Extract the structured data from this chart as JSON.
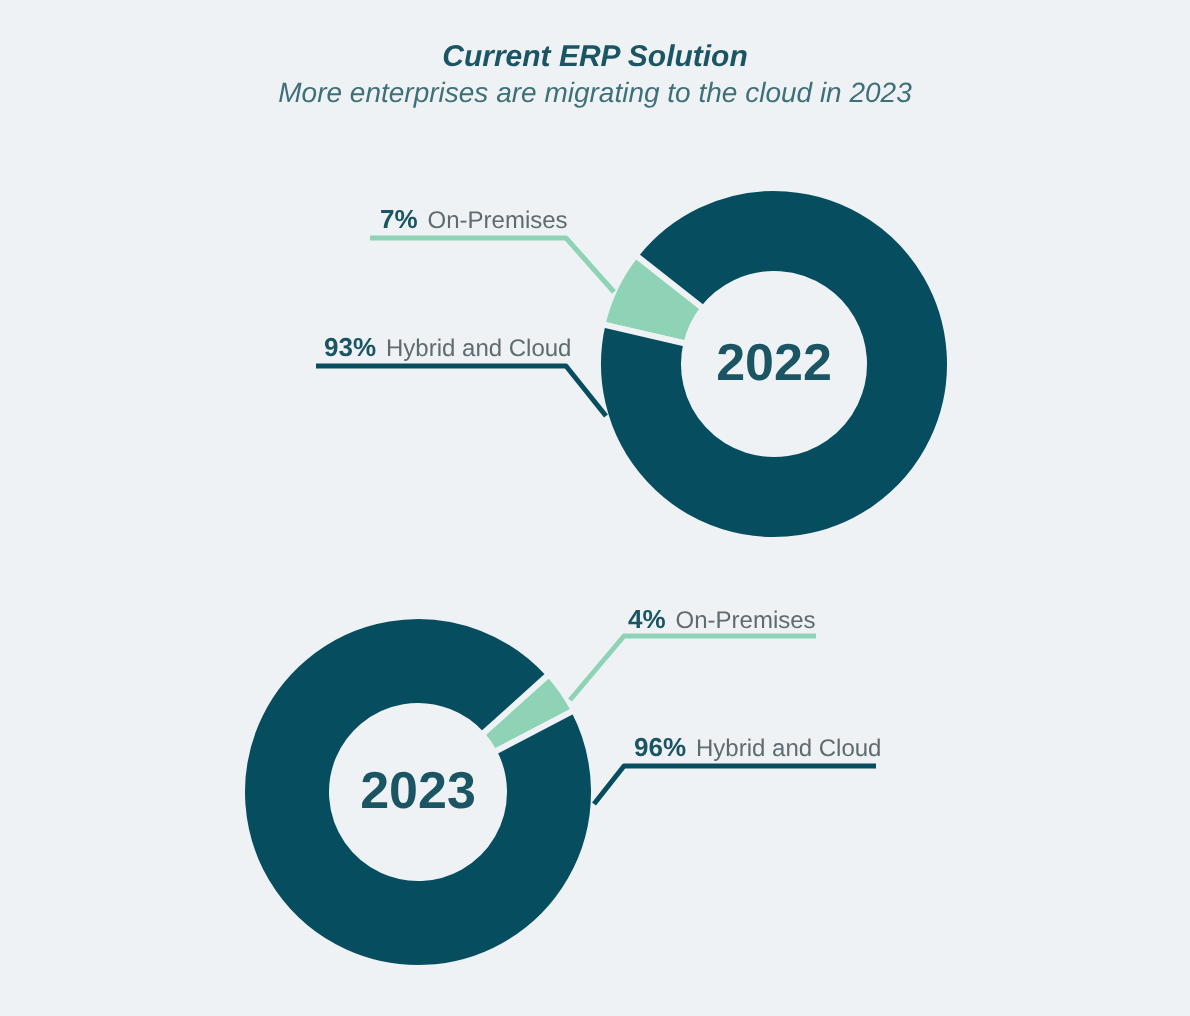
{
  "chart_data": [
    {
      "type": "donut",
      "title": "Current ERP Solution",
      "subtitle": "More enterprises are migrating to the cloud in 2023",
      "categories": [
        "On-Premises",
        "Hybrid and Cloud"
      ],
      "values": [
        7,
        93
      ],
      "colors": [
        "#8fd3b6",
        "#064e5f"
      ],
      "value_labels": [
        "7%",
        "93%"
      ],
      "annotations": [
        "2022"
      ]
    },
    {
      "type": "donut",
      "categories": [
        "On-Premises",
        "Hybrid and Cloud"
      ],
      "values": [
        4,
        96
      ],
      "colors": [
        "#8fd3b6",
        "#064e5f"
      ],
      "value_labels": [
        "4%",
        "96%"
      ],
      "annotations": [
        "2023"
      ]
    }
  ]
}
